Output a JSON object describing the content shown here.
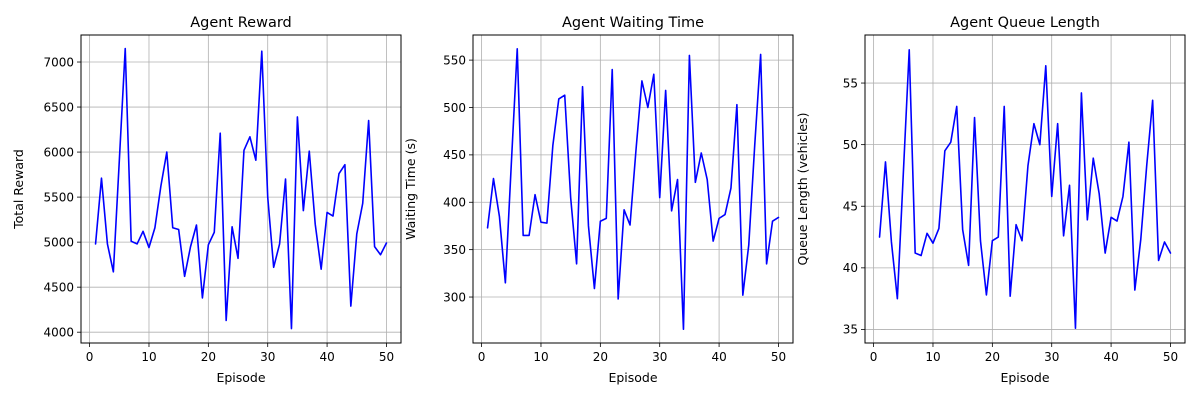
{
  "colors": {
    "series": "#0000ff",
    "grid": "#b0b0b0"
  },
  "chart_data": [
    {
      "type": "line",
      "title": "Agent Reward",
      "xlabel": "Episode",
      "ylabel": "Total Reward",
      "grid": true,
      "xlim": [
        -1.45,
        52.45
      ],
      "ylim": [
        3880,
        7300
      ],
      "xticks": [
        0,
        10,
        20,
        30,
        40,
        50
      ],
      "yticks": [
        4000,
        4500,
        5000,
        5500,
        6000,
        6500,
        7000
      ],
      "x": [
        1,
        2,
        3,
        4,
        5,
        6,
        7,
        8,
        9,
        10,
        11,
        12,
        13,
        14,
        15,
        16,
        17,
        18,
        19,
        20,
        21,
        22,
        23,
        24,
        25,
        26,
        27,
        28,
        29,
        30,
        31,
        32,
        33,
        34,
        35,
        36,
        37,
        38,
        39,
        40,
        41,
        42,
        43,
        44,
        45,
        46,
        47,
        48,
        49,
        50
      ],
      "series": [
        {
          "values": [
            4980,
            5710,
            4980,
            4670,
            5900,
            7150,
            5010,
            4980,
            5120,
            4940,
            5160,
            5620,
            6000,
            5160,
            5140,
            4620,
            4950,
            5190,
            4380,
            4970,
            5110,
            6210,
            4130,
            5170,
            4820,
            6020,
            6170,
            5910,
            7120,
            5500,
            4720,
            4980,
            5700,
            4040,
            6390,
            5350,
            6010,
            5200,
            4700,
            5330,
            5290,
            5760,
            5860,
            4290,
            5090,
            5430,
            6350,
            4950,
            4860,
            4990
          ]
        }
      ]
    },
    {
      "type": "line",
      "title": "Agent Waiting Time",
      "xlabel": "Episode",
      "ylabel": "Waiting Time (s)",
      "grid": true,
      "xlim": [
        -1.45,
        52.45
      ],
      "ylim": [
        251.5,
        576.5
      ],
      "xticks": [
        0,
        10,
        20,
        30,
        40,
        50
      ],
      "yticks": [
        300,
        350,
        400,
        450,
        500,
        550
      ],
      "x": [
        1,
        2,
        3,
        4,
        5,
        6,
        7,
        8,
        9,
        10,
        11,
        12,
        13,
        14,
        15,
        16,
        17,
        18,
        19,
        20,
        21,
        22,
        23,
        24,
        25,
        26,
        27,
        28,
        29,
        30,
        31,
        32,
        33,
        34,
        35,
        36,
        37,
        38,
        39,
        40,
        41,
        42,
        43,
        44,
        45,
        46,
        47,
        48,
        49,
        50
      ],
      "series": [
        {
          "values": [
            373,
            425,
            385,
            315,
            440,
            562,
            365,
            365,
            408,
            379,
            378,
            460,
            509,
            513,
            405,
            335,
            522,
            375,
            309,
            380,
            383,
            540,
            298,
            392,
            376,
            455,
            528,
            500,
            535,
            405,
            518,
            391,
            424,
            266,
            555,
            421,
            452,
            424,
            359,
            383,
            387,
            415,
            503,
            302,
            355,
            460,
            556,
            335,
            380,
            384
          ]
        }
      ]
    },
    {
      "type": "line",
      "title": "Agent Queue Length",
      "xlabel": "Episode",
      "ylabel": "Queue Length (vehicles)",
      "grid": true,
      "xlim": [
        -1.45,
        52.45
      ],
      "ylim": [
        33.9,
        58.9
      ],
      "xticks": [
        0,
        10,
        20,
        30,
        40,
        50
      ],
      "yticks": [
        35,
        40,
        45,
        50,
        55
      ],
      "x": [
        1,
        2,
        3,
        4,
        5,
        6,
        7,
        8,
        9,
        10,
        11,
        12,
        13,
        14,
        15,
        16,
        17,
        18,
        19,
        20,
        21,
        22,
        23,
        24,
        25,
        26,
        27,
        28,
        29,
        30,
        31,
        32,
        33,
        34,
        35,
        36,
        37,
        38,
        39,
        40,
        41,
        42,
        43,
        44,
        45,
        46,
        47,
        48,
        49,
        50
      ],
      "series": [
        {
          "values": [
            42.5,
            48.6,
            42.1,
            37.5,
            47.6,
            57.7,
            41.2,
            41.0,
            42.8,
            42.0,
            43.2,
            49.5,
            50.2,
            53.1,
            43.1,
            40.2,
            52.2,
            42.2,
            37.8,
            42.2,
            42.5,
            53.1,
            37.7,
            43.5,
            42.2,
            48.3,
            51.7,
            50.0,
            56.4,
            45.8,
            51.7,
            42.6,
            46.7,
            35.1,
            54.2,
            43.9,
            48.9,
            46.0,
            41.2,
            44.1,
            43.8,
            45.8,
            50.2,
            38.2,
            42.3,
            48.3,
            53.6,
            40.6,
            42.1,
            41.2
          ]
        }
      ]
    }
  ]
}
